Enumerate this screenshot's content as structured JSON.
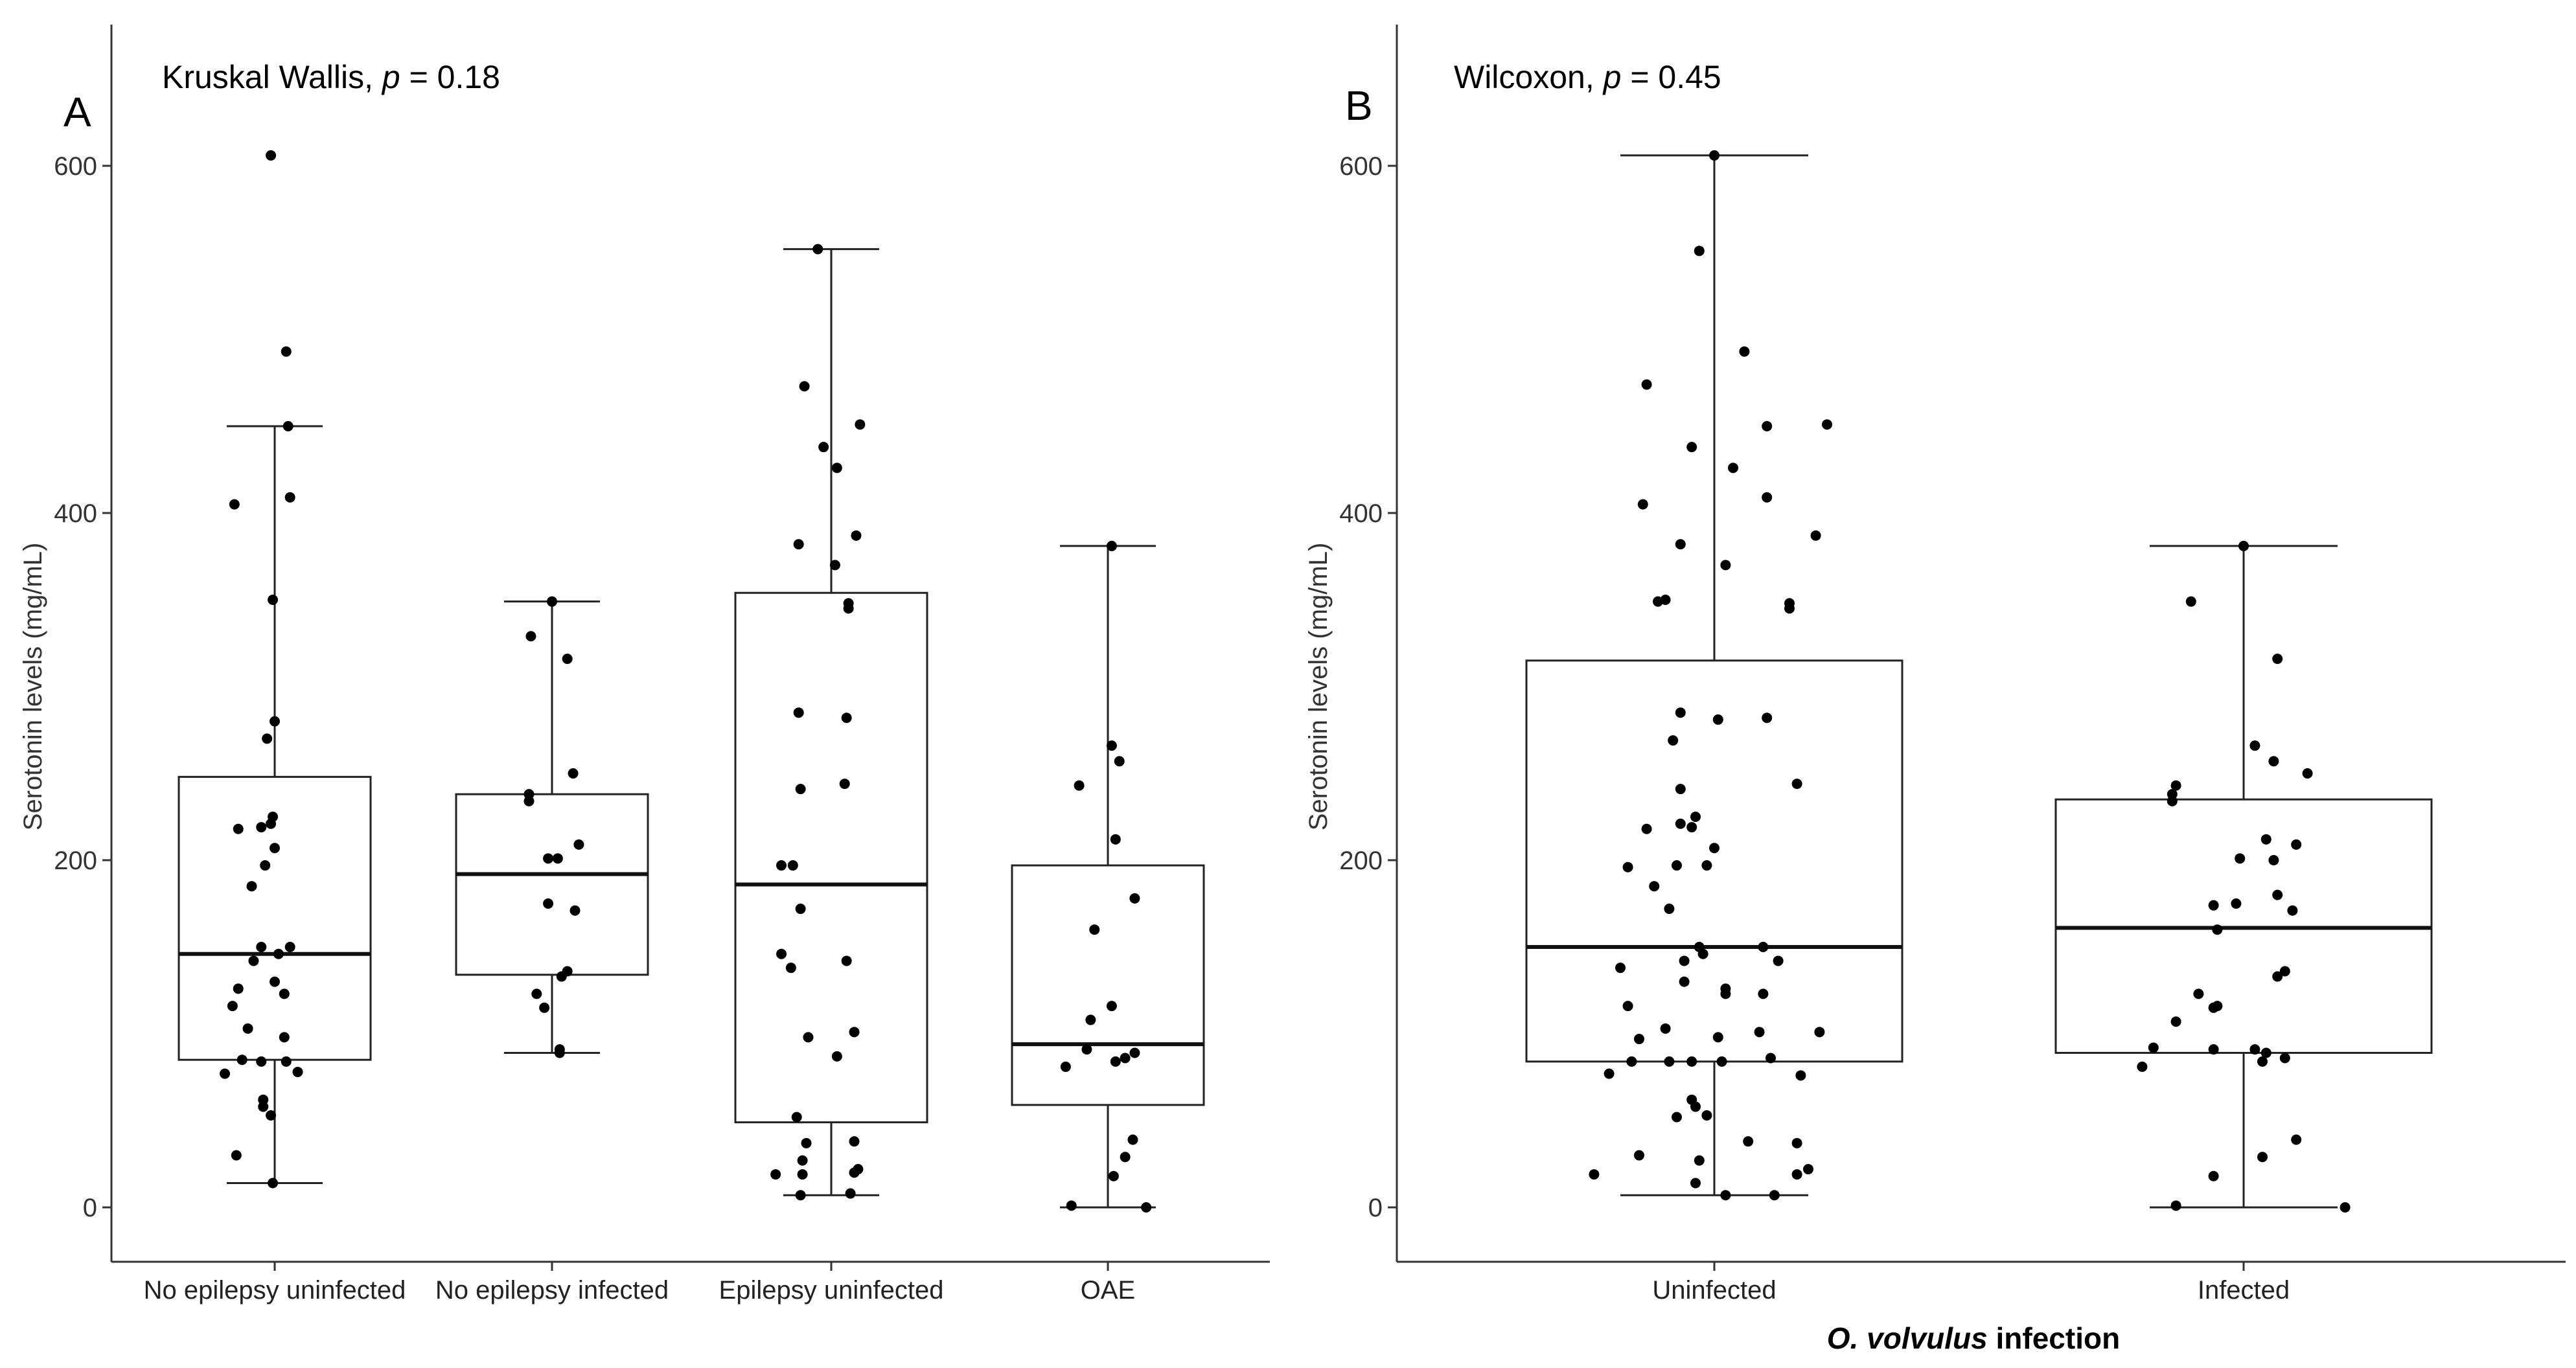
{
  "chart_data": [
    {
      "panel": "A",
      "type": "box",
      "annotation": {
        "test": "Kruskal Wallis, ",
        "p_symbol": "p",
        "p_value": " = 0.18"
      },
      "ylabel": "Serotonin levels (mg/mL)",
      "xlabel": "",
      "yticks": [
        "0",
        "200",
        "400",
        "600"
      ],
      "ylim": [
        -30,
        680
      ],
      "categories": [
        "No epilepsy uninfected",
        "No epilepsy infected",
        "Epilepsy uninfected",
        "OAE"
      ],
      "boxes": [
        {
          "q1": 85,
          "median": 146,
          "q3": 248,
          "whisker_low": 14,
          "whisker_high": 450
        },
        {
          "q1": 134,
          "median": 192,
          "q3": 238,
          "whisker_low": 89,
          "whisker_high": 349
        },
        {
          "q1": 49,
          "median": 186,
          "q3": 354,
          "whisker_low": 7,
          "whisker_high": 552
        },
        {
          "q1": 59,
          "median": 94,
          "q3": 197,
          "whisker_low": 0,
          "whisker_high": 381
        }
      ],
      "points": [
        [
          [
            -0.02,
            606
          ],
          [
            0.06,
            493
          ],
          [
            -0.21,
            405
          ],
          [
            0.08,
            409
          ],
          [
            0.07,
            450
          ],
          [
            -0.01,
            350
          ],
          [
            0.0,
            280
          ],
          [
            -0.04,
            270
          ],
          [
            -0.01,
            225
          ],
          [
            -0.07,
            219
          ],
          [
            -0.19,
            218
          ],
          [
            -0.02,
            221
          ],
          [
            0.0,
            207
          ],
          [
            -0.05,
            197
          ],
          [
            -0.12,
            185
          ],
          [
            -0.07,
            150
          ],
          [
            0.08,
            150
          ],
          [
            -0.11,
            142
          ],
          [
            0.02,
            146
          ],
          [
            -0.19,
            126
          ],
          [
            0.0,
            130
          ],
          [
            0.05,
            123
          ],
          [
            -0.22,
            116
          ],
          [
            -0.14,
            103
          ],
          [
            0.05,
            98
          ],
          [
            -0.17,
            85
          ],
          [
            -0.07,
            84
          ],
          [
            0.06,
            84
          ],
          [
            -0.26,
            77
          ],
          [
            0.12,
            78
          ],
          [
            -0.06,
            58
          ],
          [
            -0.02,
            53
          ],
          [
            -0.06,
            62
          ],
          [
            -0.2,
            30
          ],
          [
            -0.01,
            14
          ]
        ],
        [
          [
            0.0,
            349
          ],
          [
            -0.11,
            329
          ],
          [
            0.08,
            316
          ],
          [
            0.11,
            250
          ],
          [
            -0.12,
            238
          ],
          [
            -0.12,
            234
          ],
          [
            0.14,
            209
          ],
          [
            -0.02,
            201
          ],
          [
            0.03,
            201
          ],
          [
            -0.02,
            175
          ],
          [
            0.12,
            171
          ],
          [
            0.08,
            136
          ],
          [
            0.05,
            133
          ],
          [
            -0.08,
            123
          ],
          [
            -0.04,
            115
          ],
          [
            0.04,
            89
          ],
          [
            0.04,
            91
          ]
        ],
        [
          [
            -0.07,
            552
          ],
          [
            -0.14,
            473
          ],
          [
            0.15,
            451
          ],
          [
            -0.04,
            438
          ],
          [
            0.03,
            426
          ],
          [
            0.13,
            387
          ],
          [
            -0.17,
            382
          ],
          [
            0.02,
            370
          ],
          [
            0.09,
            348
          ],
          [
            0.09,
            345
          ],
          [
            -0.17,
            285
          ],
          [
            0.08,
            282
          ],
          [
            0.07,
            244
          ],
          [
            -0.16,
            241
          ],
          [
            -0.2,
            197
          ],
          [
            -0.26,
            197
          ],
          [
            -0.16,
            172
          ],
          [
            -0.26,
            146
          ],
          [
            -0.21,
            138
          ],
          [
            0.08,
            142
          ],
          [
            0.12,
            101
          ],
          [
            -0.12,
            98
          ],
          [
            0.03,
            87
          ],
          [
            -0.18,
            52
          ],
          [
            -0.13,
            37
          ],
          [
            0.12,
            38
          ],
          [
            -0.29,
            19
          ],
          [
            -0.15,
            19
          ],
          [
            -0.15,
            27
          ],
          [
            0.12,
            20
          ],
          [
            0.14,
            22
          ],
          [
            0.1,
            8
          ],
          [
            -0.16,
            7
          ]
        ],
        [
          [
            0.02,
            381
          ],
          [
            0.02,
            266
          ],
          [
            0.06,
            257
          ],
          [
            -0.15,
            243
          ],
          [
            0.04,
            212
          ],
          [
            0.14,
            178
          ],
          [
            -0.07,
            160
          ],
          [
            -0.09,
            108
          ],
          [
            0.02,
            116
          ],
          [
            -0.11,
            91
          ],
          [
            0.14,
            89
          ],
          [
            0.09,
            86
          ],
          [
            0.04,
            84
          ],
          [
            -0.22,
            81
          ],
          [
            0.13,
            39
          ],
          [
            0.09,
            29
          ],
          [
            0.03,
            18
          ],
          [
            -0.19,
            1
          ],
          [
            0.2,
            0
          ]
        ]
      ]
    },
    {
      "panel": "B",
      "type": "box",
      "annotation": {
        "test": "Wilcoxon, ",
        "p_symbol": "p",
        "p_value": " = 0.45"
      },
      "ylabel": "Serotonin levels (mg/mL)",
      "xlabel_italic": "O. volvulus",
      "xlabel_rest": " infection",
      "yticks": [
        "0",
        "200",
        "400",
        "600"
      ],
      "ylim": [
        -30,
        680
      ],
      "categories": [
        "Uninfected",
        "Infected"
      ],
      "boxes": [
        {
          "q1": 84,
          "median": 150,
          "q3": 315,
          "whisker_low": 7,
          "whisker_high": 606
        },
        {
          "q1": 89,
          "median": 161,
          "q3": 235,
          "whisker_low": 0,
          "whisker_high": 381
        }
      ],
      "points": [
        [
          [
            0.0,
            606
          ],
          [
            -0.04,
            551
          ],
          [
            0.08,
            493
          ],
          [
            -0.18,
            474
          ],
          [
            0.3,
            451
          ],
          [
            0.14,
            450
          ],
          [
            -0.06,
            438
          ],
          [
            0.05,
            426
          ],
          [
            0.14,
            409
          ],
          [
            -0.19,
            405
          ],
          [
            0.27,
            387
          ],
          [
            -0.09,
            382
          ],
          [
            0.03,
            370
          ],
          [
            -0.15,
            349
          ],
          [
            -0.13,
            350
          ],
          [
            0.2,
            345
          ],
          [
            0.2,
            348
          ],
          [
            -0.09,
            285
          ],
          [
            0.14,
            282
          ],
          [
            0.01,
            281
          ],
          [
            -0.11,
            269
          ],
          [
            0.22,
            244
          ],
          [
            -0.09,
            241
          ],
          [
            -0.05,
            225
          ],
          [
            -0.06,
            219
          ],
          [
            -0.18,
            218
          ],
          [
            -0.09,
            221
          ],
          [
            0.0,
            207
          ],
          [
            -0.1,
            197
          ],
          [
            -0.02,
            197
          ],
          [
            -0.23,
            196
          ],
          [
            -0.16,
            185
          ],
          [
            -0.12,
            172
          ],
          [
            -0.04,
            150
          ],
          [
            0.13,
            150
          ],
          [
            -0.08,
            142
          ],
          [
            0.17,
            142
          ],
          [
            -0.03,
            146
          ],
          [
            -0.25,
            138
          ],
          [
            -0.08,
            130
          ],
          [
            0.13,
            123
          ],
          [
            0.03,
            123
          ],
          [
            -0.23,
            116
          ],
          [
            0.03,
            126
          ],
          [
            -0.13,
            103
          ],
          [
            0.01,
            98
          ],
          [
            -0.2,
            97
          ],
          [
            0.12,
            101
          ],
          [
            0.28,
            101
          ],
          [
            0.15,
            86
          ],
          [
            -0.12,
            84
          ],
          [
            -0.06,
            84
          ],
          [
            0.02,
            84
          ],
          [
            -0.22,
            84
          ],
          [
            -0.28,
            77
          ],
          [
            0.23,
            76
          ],
          [
            -0.05,
            58
          ],
          [
            -0.06,
            62
          ],
          [
            -0.1,
            52
          ],
          [
            -0.02,
            53
          ],
          [
            0.22,
            37
          ],
          [
            -0.2,
            30
          ],
          [
            0.09,
            38
          ],
          [
            -0.04,
            27
          ],
          [
            -0.32,
            19
          ],
          [
            0.22,
            19
          ],
          [
            0.25,
            22
          ],
          [
            -0.05,
            14
          ],
          [
            0.16,
            7
          ],
          [
            0.03,
            7
          ]
        ],
        [
          [
            0.0,
            381
          ],
          [
            -0.14,
            349
          ],
          [
            0.09,
            316
          ],
          [
            0.03,
            266
          ],
          [
            0.08,
            257
          ],
          [
            0.17,
            250
          ],
          [
            -0.18,
            243
          ],
          [
            -0.19,
            238
          ],
          [
            -0.19,
            234
          ],
          [
            0.06,
            212
          ],
          [
            0.14,
            209
          ],
          [
            0.08,
            200
          ],
          [
            -0.01,
            201
          ],
          [
            -0.02,
            175
          ],
          [
            -0.08,
            174
          ],
          [
            0.09,
            180
          ],
          [
            0.13,
            171
          ],
          [
            -0.07,
            160
          ],
          [
            0.11,
            136
          ],
          [
            0.09,
            133
          ],
          [
            -0.12,
            123
          ],
          [
            -0.08,
            115
          ],
          [
            -0.07,
            116
          ],
          [
            -0.18,
            107
          ],
          [
            -0.08,
            91
          ],
          [
            0.06,
            89
          ],
          [
            0.03,
            91
          ],
          [
            -0.24,
            92
          ],
          [
            0.11,
            86
          ],
          [
            0.05,
            84
          ],
          [
            -0.27,
            81
          ],
          [
            0.14,
            39
          ],
          [
            0.05,
            29
          ],
          [
            -0.08,
            18
          ],
          [
            -0.18,
            1
          ],
          [
            0.27,
            0
          ]
        ]
      ]
    }
  ]
}
